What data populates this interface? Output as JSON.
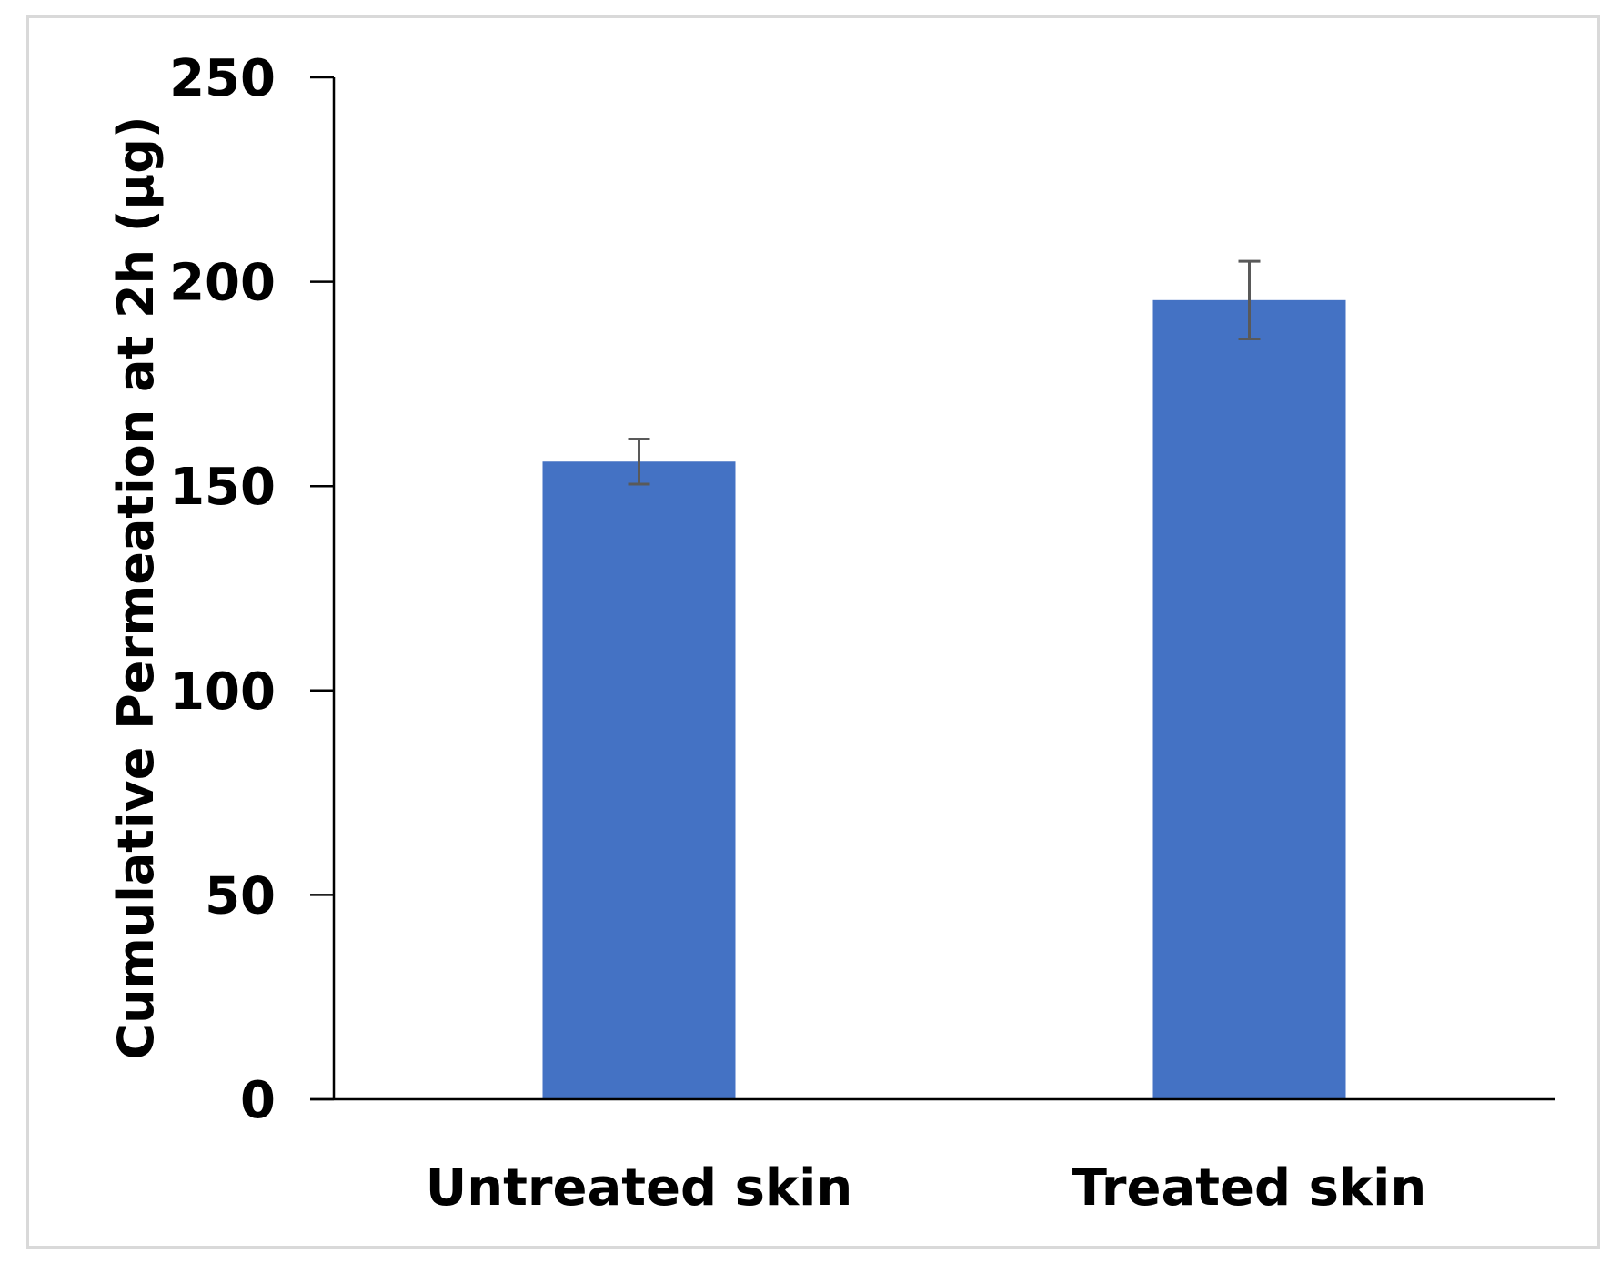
{
  "chart_data": {
    "type": "bar",
    "title": "",
    "xlabel": "",
    "ylabel": "Cumulative Permeation at 2h (µg)",
    "categories": [
      "Untreated skin",
      "Treated skin"
    ],
    "values": [
      156,
      195.5
    ],
    "error": [
      5.5,
      9.5
    ],
    "ylim": [
      0,
      250
    ],
    "yticks": [
      0,
      50,
      100,
      150,
      200,
      250
    ],
    "grid": false,
    "legend": "none",
    "bar_color": "#4472c4",
    "error_color": "#595959"
  }
}
